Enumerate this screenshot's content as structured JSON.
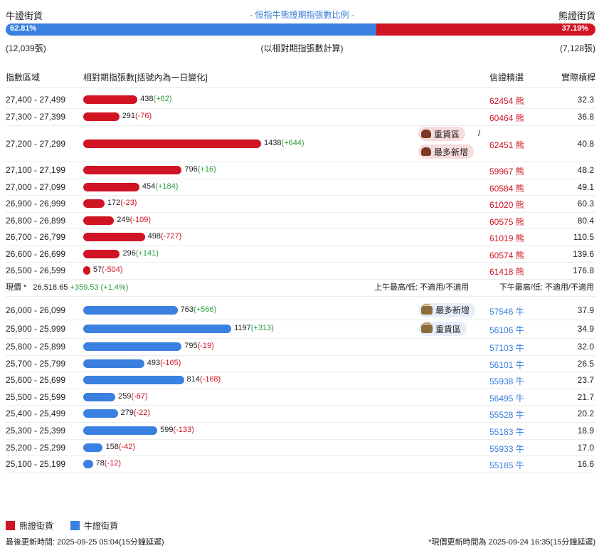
{
  "header": {
    "bear_title": "熊證街貨",
    "bull_title": "牛證街貨",
    "center_title": "- 恒指牛熊證期指張數比例 -",
    "bull_pct": "62.81%",
    "bear_pct": "37.19%",
    "bull_ratio": 0.6281,
    "bull_contracts": "(12,039張)",
    "bear_contracts": "(7,128張)",
    "basis_note": "(以相對期指張數計算)"
  },
  "columns": {
    "range": "指數區域",
    "contracts": "相對期指張數[括號內為一日變化]",
    "price": "信證精選",
    "leverage": "實際槓桿"
  },
  "colors": {
    "bear": "#d01424",
    "bull": "#3a80e0",
    "positive": "#2a9d3a"
  },
  "max_contracts": 1438,
  "bear_rows": [
    {
      "range": "27,400 - 27,499",
      "count": 438,
      "count_label": "438",
      "change": "(+62)",
      "dir": "pos",
      "price": "62454 熊",
      "leverage": "32.3"
    },
    {
      "range": "27,300 - 27,399",
      "count": 291,
      "count_label": "291",
      "change": "(-76)",
      "dir": "neg",
      "price": "60464 熊",
      "leverage": "36.8"
    },
    {
      "range": "27,200 - 27,299",
      "count": 1438,
      "count_label": "1438",
      "change": "(+644)",
      "dir": "pos",
      "price": "62451 熊",
      "leverage": "40.8",
      "tags": [
        "重貨區",
        "最多新增"
      ],
      "tag_sep": "/"
    },
    {
      "range": "27,100 - 27,199",
      "count": 796,
      "count_label": "796",
      "change": "(+16)",
      "dir": "pos",
      "price": "59967 熊",
      "leverage": "48.2"
    },
    {
      "range": "27,000 - 27,099",
      "count": 454,
      "count_label": "454",
      "change": "(+184)",
      "dir": "pos",
      "price": "60584 熊",
      "leverage": "49.1"
    },
    {
      "range": "26,900 - 26,999",
      "count": 172,
      "count_label": "172",
      "change": "(-23)",
      "dir": "neg",
      "price": "61020 熊",
      "leverage": "60.3"
    },
    {
      "range": "26,800 - 26,899",
      "count": 249,
      "count_label": "249",
      "change": "(-109)",
      "dir": "neg",
      "price": "60575 熊",
      "leverage": "80.4"
    },
    {
      "range": "26,700 - 26,799",
      "count": 498,
      "count_label": "498",
      "change": "(-727)",
      "dir": "neg",
      "price": "61019 熊",
      "leverage": "110.5"
    },
    {
      "range": "26,600 - 26,699",
      "count": 296,
      "count_label": "296",
      "change": "(+141)",
      "dir": "pos",
      "price": "60574 熊",
      "leverage": "139.6"
    },
    {
      "range": "26,500 - 26,599",
      "count": 57,
      "count_label": "57",
      "change": "(-504)",
      "dir": "neg",
      "price": "61418 熊",
      "leverage": "176.8"
    }
  ],
  "spot": {
    "label": "現價 *",
    "value": "26,518.65",
    "change": "+359.53 (+1.4%)",
    "am": "上午最高/低: 不適用/不適用",
    "pm": "下午最高/低: 不適用/不適用"
  },
  "bull_rows": [
    {
      "range": "26,000 - 26,099",
      "count": 763,
      "count_label": "763",
      "change": "(+566)",
      "dir": "pos",
      "price": "57546 牛",
      "leverage": "37.9",
      "tags": [
        "最多新增"
      ]
    },
    {
      "range": "25,900 - 25,999",
      "count": 1197,
      "count_label": "1197",
      "change": "(+313)",
      "dir": "pos",
      "price": "56106 牛",
      "leverage": "34.9",
      "tags": [
        "重貨區"
      ]
    },
    {
      "range": "25,800 - 25,899",
      "count": 795,
      "count_label": "795",
      "change": "(-19)",
      "dir": "neg",
      "price": "57103 牛",
      "leverage": "32.0"
    },
    {
      "range": "25,700 - 25,799",
      "count": 493,
      "count_label": "493",
      "change": "(-165)",
      "dir": "neg",
      "price": "56101 牛",
      "leverage": "26.5"
    },
    {
      "range": "25,600 - 25,699",
      "count": 814,
      "count_label": "814",
      "change": "(-168)",
      "dir": "neg",
      "price": "55938 牛",
      "leverage": "23.7"
    },
    {
      "range": "25,500 - 25,599",
      "count": 259,
      "count_label": "259",
      "change": "(-67)",
      "dir": "neg",
      "price": "56495 牛",
      "leverage": "21.7"
    },
    {
      "range": "25,400 - 25,499",
      "count": 279,
      "count_label": "279",
      "change": "(-22)",
      "dir": "neg",
      "price": "55528 牛",
      "leverage": "20.2"
    },
    {
      "range": "25,300 - 25,399",
      "count": 599,
      "count_label": "599",
      "change": "(-133)",
      "dir": "neg",
      "price": "55183 牛",
      "leverage": "18.9"
    },
    {
      "range": "25,200 - 25,299",
      "count": 158,
      "count_label": "158",
      "change": "(-42)",
      "dir": "neg",
      "price": "55933 牛",
      "leverage": "17.0"
    },
    {
      "range": "25,100 - 25,199",
      "count": 78,
      "count_label": "78",
      "change": "(-12)",
      "dir": "neg",
      "price": "55185 牛",
      "leverage": "16.6"
    }
  ],
  "legend": {
    "bear": "熊證街貨",
    "bull": "牛證街貨"
  },
  "footer": {
    "left": "最後更新時間: 2025-09-25 05:04(15分鐘延遲)",
    "right": "*現價更新時間為 2025-09-24 16:35(15分鐘延遲)"
  }
}
